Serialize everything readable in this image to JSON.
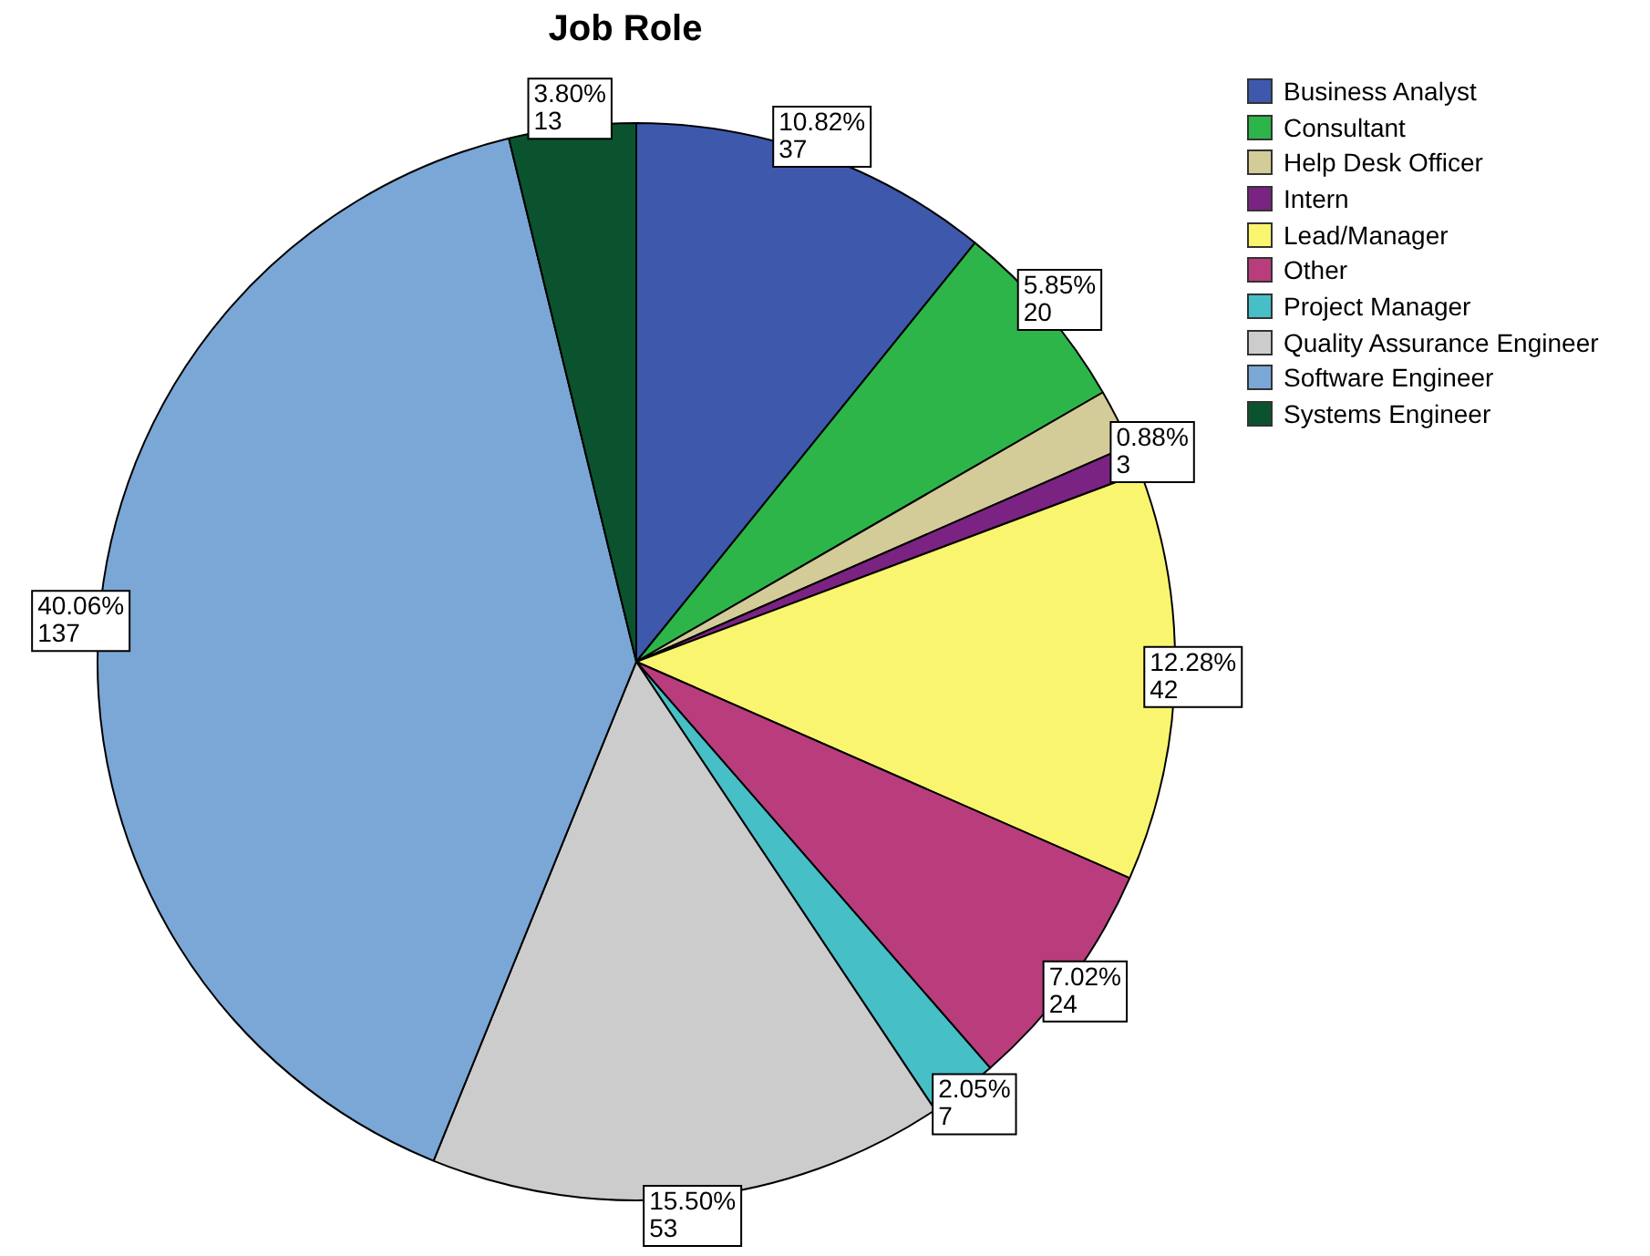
{
  "chart_data": {
    "type": "pie",
    "title": "Job Role",
    "categories": [
      "Business Analyst",
      "Consultant",
      "Help Desk Officer",
      "Intern",
      "Lead/Manager",
      "Other",
      "Project Manager",
      "Quality Assurance Engineer",
      "Software Engineer",
      "Systems Engineer"
    ],
    "values": [
      37,
      20,
      6,
      3,
      42,
      24,
      7,
      53,
      137,
      13
    ],
    "colors": [
      "#3e58ac",
      "#2db54a",
      "#d3cc98",
      "#7b2382",
      "#f9f56f",
      "#b93d7c",
      "#46bfc6",
      "#cccccc",
      "#7ba7d6",
      "#0b532f"
    ],
    "value_labels": [
      "10.82%\n37",
      "5.85%\n20",
      null,
      "0.88%\n3",
      "12.28%\n42",
      "7.02%\n24",
      "2.05%\n7",
      "15.50%\n53",
      "40.06%\n137",
      "3.80%\n13"
    ],
    "legend": "top right"
  }
}
